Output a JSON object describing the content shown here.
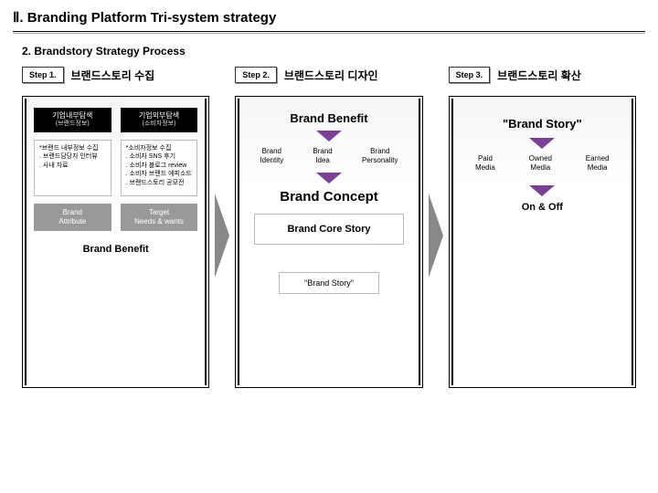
{
  "page": {
    "title": "Ⅱ. Branding Platform Tri-system strategy",
    "subtitle": "2. Brandstory Strategy Process"
  },
  "colors": {
    "purple": "#7b3f98",
    "big_arrow": "#888888"
  },
  "steps": [
    {
      "badge": "Step 1.",
      "title": "브랜드스토리 수집"
    },
    {
      "badge": "Step 2.",
      "title": "브랜드스토리 디자인"
    },
    {
      "badge": "Step 3.",
      "title": "브랜드스토리 확산"
    }
  ],
  "step1": {
    "col_heads": [
      {
        "main": "기업내부탐색",
        "sub": "(브랜드정보)"
      },
      {
        "main": "기업외부탐색",
        "sub": "(소비자정보)"
      }
    ],
    "cells": [
      "*브랜드 내부정보 수집\n. 브랜드담당자 인터뷰\n. 사내 자료",
      "*소비자정보 수집\n. 소비자 SNS 후기\n. 소비자 블로그 review\n. 소비자 브랜드 에피소드\n. 브랜드스토리 공모전"
    ],
    "btns": [
      "Brand\nAttribute",
      "Target\nNeeds & wants"
    ],
    "bottom": "Brand Benefit"
  },
  "step2": {
    "bb": "Brand Benefit",
    "row3": [
      "Brand\nIdentity",
      "Brand\nIdea",
      "Brand\nPersonality"
    ],
    "bc": "Brand Concept",
    "bcs": "Brand Core Story",
    "bs": "\"Brand Story\""
  },
  "step3": {
    "bs": "\"Brand Story\"",
    "row3": [
      "Paid\nMedia",
      "Owned\nMedia",
      "Earned\nMedia"
    ],
    "onoff": "On & Off"
  }
}
